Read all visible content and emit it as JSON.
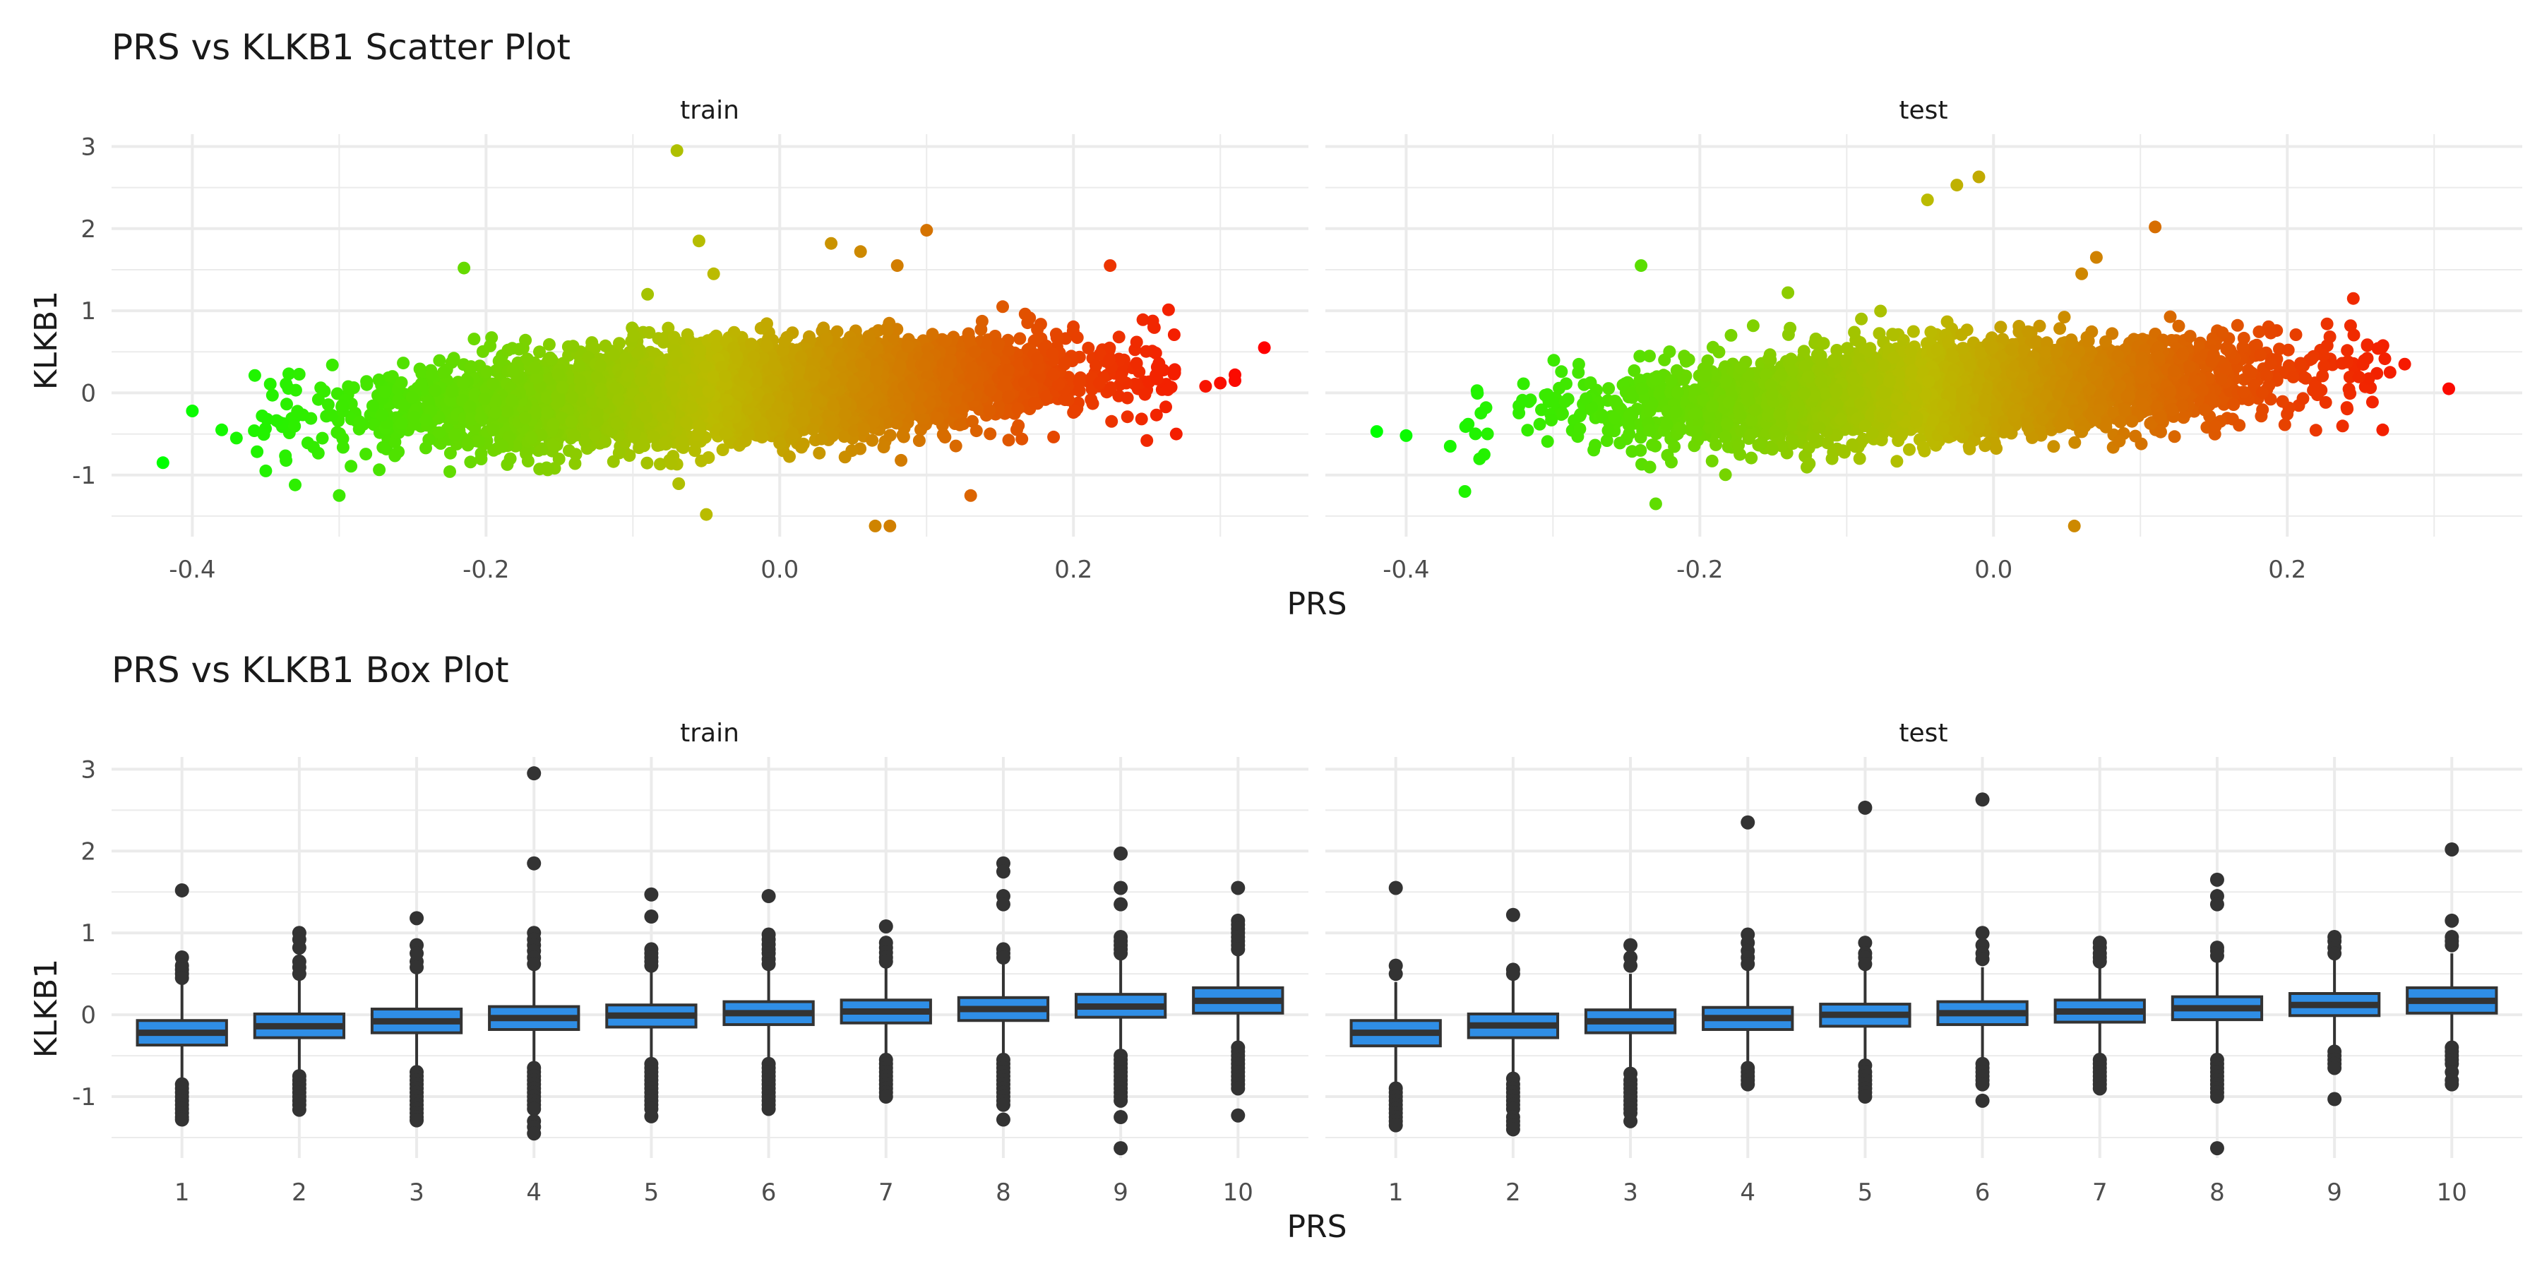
{
  "figure": {
    "background": "#ffffff"
  },
  "chart_data": [
    {
      "type": "scatter",
      "title": "PRS vs KLKB1 Scatter Plot",
      "xlabel": "PRS",
      "ylabel": "KLKB1",
      "facets": [
        "train",
        "test"
      ],
      "xlim": [
        -0.455,
        0.36
      ],
      "ylim": [
        -1.75,
        3.15
      ],
      "xticks": [
        -0.4,
        -0.2,
        0.0,
        0.2
      ],
      "xtick_labels": [
        "-0.4",
        "-0.2",
        "0.0",
        "0.2"
      ],
      "yticks": [
        -1,
        0,
        1,
        2,
        3
      ],
      "ytick_labels": [
        "-1",
        "0",
        "1",
        "2",
        "3"
      ],
      "grid": true,
      "color_gradient": {
        "low": "#00FF00",
        "mid": "#BBBB00",
        "high": "#FF0000",
        "domain": [
          -0.42,
          0.33
        ]
      },
      "point_counts": {
        "train": 5500,
        "test": 3800
      },
      "distribution": {
        "cloud_x_range": [
          -0.36,
          0.27
        ],
        "slope": 0.95,
        "intercept": 0.05,
        "sd": 0.27
      },
      "highlighted_points": {
        "train": [
          [
            -0.42,
            -0.85
          ],
          [
            -0.07,
            2.95
          ],
          [
            -0.215,
            1.52
          ],
          [
            -0.055,
            1.85
          ],
          [
            0.1,
            1.98
          ],
          [
            0.035,
            1.82
          ],
          [
            0.055,
            1.72
          ],
          [
            0.08,
            1.55
          ],
          [
            -0.045,
            1.45
          ],
          [
            -0.09,
            1.2
          ],
          [
            0.075,
            -1.62
          ],
          [
            0.065,
            -1.62
          ],
          [
            -0.05,
            -1.48
          ],
          [
            0.13,
            -1.25
          ],
          [
            0.225,
            1.55
          ],
          [
            0.33,
            0.55
          ],
          [
            0.31,
            0.22
          ],
          [
            0.31,
            0.15
          ],
          [
            0.3,
            0.12
          ],
          [
            0.29,
            0.08
          ],
          [
            -0.37,
            -0.55
          ],
          [
            -0.38,
            -0.45
          ],
          [
            -0.35,
            -0.95
          ],
          [
            -0.33,
            -1.12
          ],
          [
            -0.3,
            -1.25
          ],
          [
            -0.4,
            -0.22
          ],
          [
            0.27,
            -0.5
          ],
          [
            0.25,
            -0.58
          ]
        ],
        "test": [
          [
            -0.42,
            -0.47
          ],
          [
            -0.4,
            -0.52
          ],
          [
            0.31,
            0.05
          ],
          [
            -0.045,
            2.35
          ],
          [
            -0.01,
            2.63
          ],
          [
            -0.025,
            2.53
          ],
          [
            0.11,
            2.02
          ],
          [
            0.07,
            1.65
          ],
          [
            -0.24,
            1.55
          ],
          [
            0.055,
            -1.62
          ],
          [
            0.06,
            1.45
          ],
          [
            -0.14,
            1.22
          ],
          [
            0.245,
            1.15
          ],
          [
            -0.36,
            -1.2
          ],
          [
            -0.23,
            -1.35
          ],
          [
            0.27,
            0.25
          ],
          [
            0.28,
            0.35
          ],
          [
            0.265,
            -0.45
          ],
          [
            -0.37,
            -0.65
          ],
          [
            -0.09,
            0.9
          ]
        ]
      }
    },
    {
      "type": "box",
      "title": "PRS vs KLKB1 Box Plot",
      "xlabel": "PRS",
      "ylabel": "KLKB1",
      "facets": [
        "train",
        "test"
      ],
      "categories": [
        "1",
        "2",
        "3",
        "4",
        "5",
        "6",
        "7",
        "8",
        "9",
        "10"
      ],
      "ylim": [
        -1.75,
        3.15
      ],
      "yticks": [
        -1,
        0,
        1,
        2,
        3
      ],
      "ytick_labels": [
        "-1",
        "0",
        "1",
        "2",
        "3"
      ],
      "grid": true,
      "box_fill": "#2f8ee6",
      "box_line": "#333333",
      "series": [
        {
          "facet": "train",
          "boxes": [
            {
              "q1": -0.37,
              "median": -0.22,
              "q3": -0.07,
              "whisker_low": -0.82,
              "whisker_high": 0.37,
              "outliers": [
                1.52,
                0.7,
                0.6,
                0.55,
                0.5,
                0.45,
                -0.85,
                -0.9,
                -0.95,
                -1.0,
                -1.05,
                -1.1,
                -1.15,
                -1.2,
                -1.25,
                -1.28
              ]
            },
            {
              "q1": -0.28,
              "median": -0.14,
              "q3": 0.01,
              "whisker_low": -0.7,
              "whisker_high": 0.42,
              "outliers": [
                1.0,
                0.92,
                0.82,
                0.65,
                0.58,
                0.5,
                -0.75,
                -0.8,
                -0.85,
                -0.9,
                -0.95,
                -1.0,
                -1.05,
                -1.1,
                -1.16
              ]
            },
            {
              "q1": -0.22,
              "median": -0.08,
              "q3": 0.07,
              "whisker_low": -0.66,
              "whisker_high": 0.52,
              "outliers": [
                1.18,
                0.85,
                0.75,
                0.65,
                0.58,
                -0.7,
                -0.75,
                -0.8,
                -0.85,
                -0.9,
                -0.95,
                -1.0,
                -1.05,
                -1.1,
                -1.15,
                -1.2,
                -1.25,
                -1.29
              ]
            },
            {
              "q1": -0.18,
              "median": -0.04,
              "q3": 0.1,
              "whisker_low": -0.6,
              "whisker_high": 0.55,
              "outliers": [
                2.95,
                1.85,
                1.0,
                0.92,
                0.85,
                0.78,
                0.7,
                0.62,
                -0.65,
                -0.7,
                -0.75,
                -0.8,
                -0.85,
                -0.9,
                -0.95,
                -1.0,
                -1.05,
                -1.1,
                -1.15,
                -1.3,
                -1.37,
                -1.45
              ]
            },
            {
              "q1": -0.15,
              "median": -0.01,
              "q3": 0.12,
              "whisker_low": -0.56,
              "whisker_high": 0.55,
              "outliers": [
                1.47,
                1.2,
                0.8,
                0.75,
                0.7,
                0.65,
                0.6,
                -0.6,
                -0.65,
                -0.7,
                -0.75,
                -0.8,
                -0.85,
                -0.9,
                -0.95,
                -1.0,
                -1.05,
                -1.1,
                -1.15,
                -1.24
              ]
            },
            {
              "q1": -0.12,
              "median": 0.02,
              "q3": 0.16,
              "whisker_low": -0.55,
              "whisker_high": 0.57,
              "outliers": [
                1.45,
                0.98,
                0.92,
                0.86,
                0.8,
                0.75,
                0.68,
                0.62,
                -0.6,
                -0.65,
                -0.7,
                -0.75,
                -0.8,
                -0.85,
                -0.9,
                -0.95,
                -1.0,
                -1.05,
                -1.1,
                -1.15
              ]
            },
            {
              "q1": -0.1,
              "median": 0.04,
              "q3": 0.18,
              "whisker_low": -0.52,
              "whisker_high": 0.6,
              "outliers": [
                1.08,
                0.88,
                0.82,
                0.76,
                0.7,
                0.65,
                -0.55,
                -0.6,
                -0.65,
                -0.7,
                -0.75,
                -0.8,
                -0.85,
                -0.9,
                -0.95,
                -1.0
              ]
            },
            {
              "q1": -0.07,
              "median": 0.07,
              "q3": 0.21,
              "whisker_low": -0.5,
              "whisker_high": 0.65,
              "outliers": [
                1.85,
                1.75,
                1.45,
                1.35,
                0.8,
                0.75,
                0.7,
                -0.55,
                -0.6,
                -0.65,
                -0.7,
                -0.75,
                -0.8,
                -0.85,
                -0.9,
                -0.95,
                -1.0,
                -1.05,
                -1.1,
                -1.28
              ]
            },
            {
              "q1": -0.03,
              "median": 0.1,
              "q3": 0.25,
              "whisker_low": -0.45,
              "whisker_high": 0.68,
              "outliers": [
                1.97,
                1.55,
                1.35,
                0.95,
                0.9,
                0.85,
                0.8,
                0.75,
                -0.5,
                -0.55,
                -0.6,
                -0.65,
                -0.7,
                -0.75,
                -0.8,
                -0.85,
                -0.9,
                -0.95,
                -1.0,
                -1.05,
                -1.25,
                -1.63
              ]
            },
            {
              "q1": 0.02,
              "median": 0.17,
              "q3": 0.33,
              "whisker_low": -0.35,
              "whisker_high": 0.75,
              "outliers": [
                1.55,
                1.15,
                1.1,
                1.05,
                1.0,
                0.95,
                0.9,
                0.85,
                0.8,
                -0.4,
                -0.45,
                -0.5,
                -0.55,
                -0.6,
                -0.65,
                -0.7,
                -0.75,
                -0.8,
                -0.85,
                -0.9,
                -1.23
              ]
            }
          ]
        },
        {
          "facet": "test",
          "boxes": [
            {
              "q1": -0.38,
              "median": -0.22,
              "q3": -0.07,
              "whisker_low": -0.85,
              "whisker_high": 0.4,
              "outliers": [
                1.55,
                0.6,
                0.5,
                -0.9,
                -0.95,
                -1.0,
                -1.05,
                -1.1,
                -1.15,
                -1.2,
                -1.25,
                -1.3,
                -1.35
              ]
            },
            {
              "q1": -0.28,
              "median": -0.13,
              "q3": 0.01,
              "whisker_low": -0.72,
              "whisker_high": 0.45,
              "outliers": [
                1.22,
                0.55,
                0.5,
                -0.78,
                -0.85,
                -0.9,
                -0.95,
                -1.0,
                -1.05,
                -1.1,
                -1.15,
                -1.25,
                -1.3,
                -1.35,
                -1.4
              ]
            },
            {
              "q1": -0.22,
              "median": -0.08,
              "q3": 0.06,
              "whisker_low": -0.68,
              "whisker_high": 0.5,
              "outliers": [
                0.85,
                0.7,
                0.6,
                -0.72,
                -0.8,
                -0.85,
                -0.9,
                -0.95,
                -1.0,
                -1.05,
                -1.1,
                -1.15,
                -1.2,
                -1.3
              ]
            },
            {
              "q1": -0.18,
              "median": -0.04,
              "q3": 0.09,
              "whisker_low": -0.6,
              "whisker_high": 0.55,
              "outliers": [
                2.35,
                0.98,
                0.88,
                0.78,
                0.7,
                0.62,
                -0.65,
                -0.7,
                -0.75,
                -0.8,
                -0.85
              ]
            },
            {
              "q1": -0.14,
              "median": 0.0,
              "q3": 0.13,
              "whisker_low": -0.57,
              "whisker_high": 0.56,
              "outliers": [
                2.53,
                0.88,
                0.75,
                0.7,
                0.62,
                -0.62,
                -0.7,
                -0.75,
                -0.8,
                -0.85,
                -0.9,
                -0.95,
                -1.0
              ]
            },
            {
              "q1": -0.12,
              "median": 0.02,
              "q3": 0.16,
              "whisker_low": -0.55,
              "whisker_high": 0.58,
              "outliers": [
                2.63,
                1.0,
                0.85,
                0.75,
                0.68,
                -0.6,
                -0.65,
                -0.7,
                -0.75,
                -0.8,
                -0.85,
                -1.05
              ]
            },
            {
              "q1": -0.09,
              "median": 0.04,
              "q3": 0.18,
              "whisker_low": -0.52,
              "whisker_high": 0.6,
              "outliers": [
                0.88,
                0.82,
                0.75,
                0.7,
                0.65,
                -0.55,
                -0.6,
                -0.65,
                -0.7,
                -0.75,
                -0.8,
                -0.85,
                -0.9
              ]
            },
            {
              "q1": -0.06,
              "median": 0.08,
              "q3": 0.22,
              "whisker_low": -0.5,
              "whisker_high": 0.66,
              "outliers": [
                1.65,
                1.45,
                1.35,
                0.82,
                0.78,
                0.72,
                -0.55,
                -0.6,
                -0.65,
                -0.7,
                -0.75,
                -0.8,
                -0.85,
                -0.9,
                -0.95,
                -1.0,
                -1.63
              ]
            },
            {
              "q1": -0.01,
              "median": 0.12,
              "q3": 0.26,
              "whisker_low": -0.42,
              "whisker_high": 0.68,
              "outliers": [
                0.95,
                0.9,
                0.82,
                0.75,
                -0.45,
                -0.5,
                -0.55,
                -0.6,
                -0.65,
                -1.03
              ]
            },
            {
              "q1": 0.02,
              "median": 0.17,
              "q3": 0.33,
              "whisker_low": -0.35,
              "whisker_high": 0.75,
              "outliers": [
                2.02,
                1.15,
                0.95,
                0.9,
                0.85,
                -0.4,
                -0.45,
                -0.5,
                -0.55,
                -0.6,
                -0.7,
                -0.8,
                -0.85
              ]
            }
          ]
        }
      ]
    }
  ]
}
